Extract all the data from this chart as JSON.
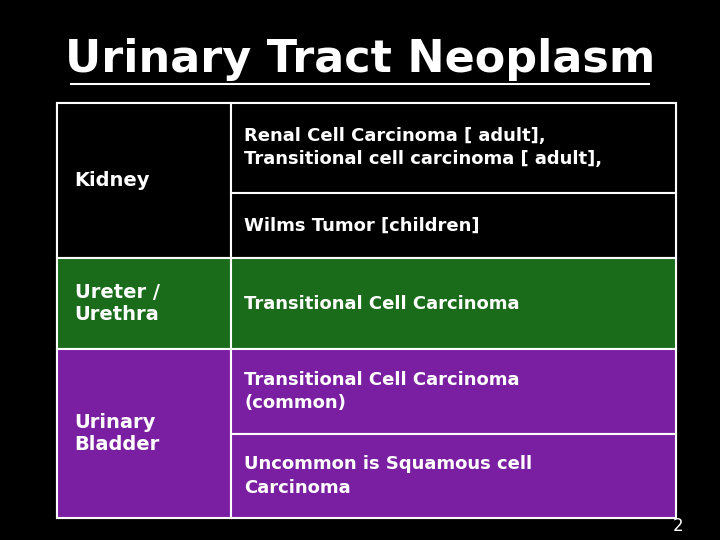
{
  "title": "Urinary Tract Neoplasm",
  "background_color": "#000000",
  "text_color": "#ffffff",
  "title_fontsize": 32,
  "table_border_color": "#ffffff",
  "page_number": "2",
  "rows": [
    {
      "left_label": "Kidney",
      "left_bg": "#000000",
      "right_cells": [
        {
          "text": "Renal Cell Carcinoma [ adult],\nTransitional cell carcinoma [ adult],",
          "bg": "#000000"
        },
        {
          "text": "Wilms Tumor [children]",
          "bg": "#000000"
        }
      ]
    },
    {
      "left_label": "Ureter /\nUrethra",
      "left_bg": "#1a6b1a",
      "right_cells": [
        {
          "text": "Transitional Cell Carcinoma",
          "bg": "#1a6b1a"
        }
      ]
    },
    {
      "left_label": "Urinary\nBladder",
      "left_bg": "#7b1fa2",
      "right_cells": [
        {
          "text": "Transitional Cell Carcinoma\n(common)",
          "bg": "#7b1fa2"
        },
        {
          "text": "Uncommon is Squamous cell\nCarcinoma",
          "bg": "#7b1fa2"
        }
      ]
    }
  ]
}
